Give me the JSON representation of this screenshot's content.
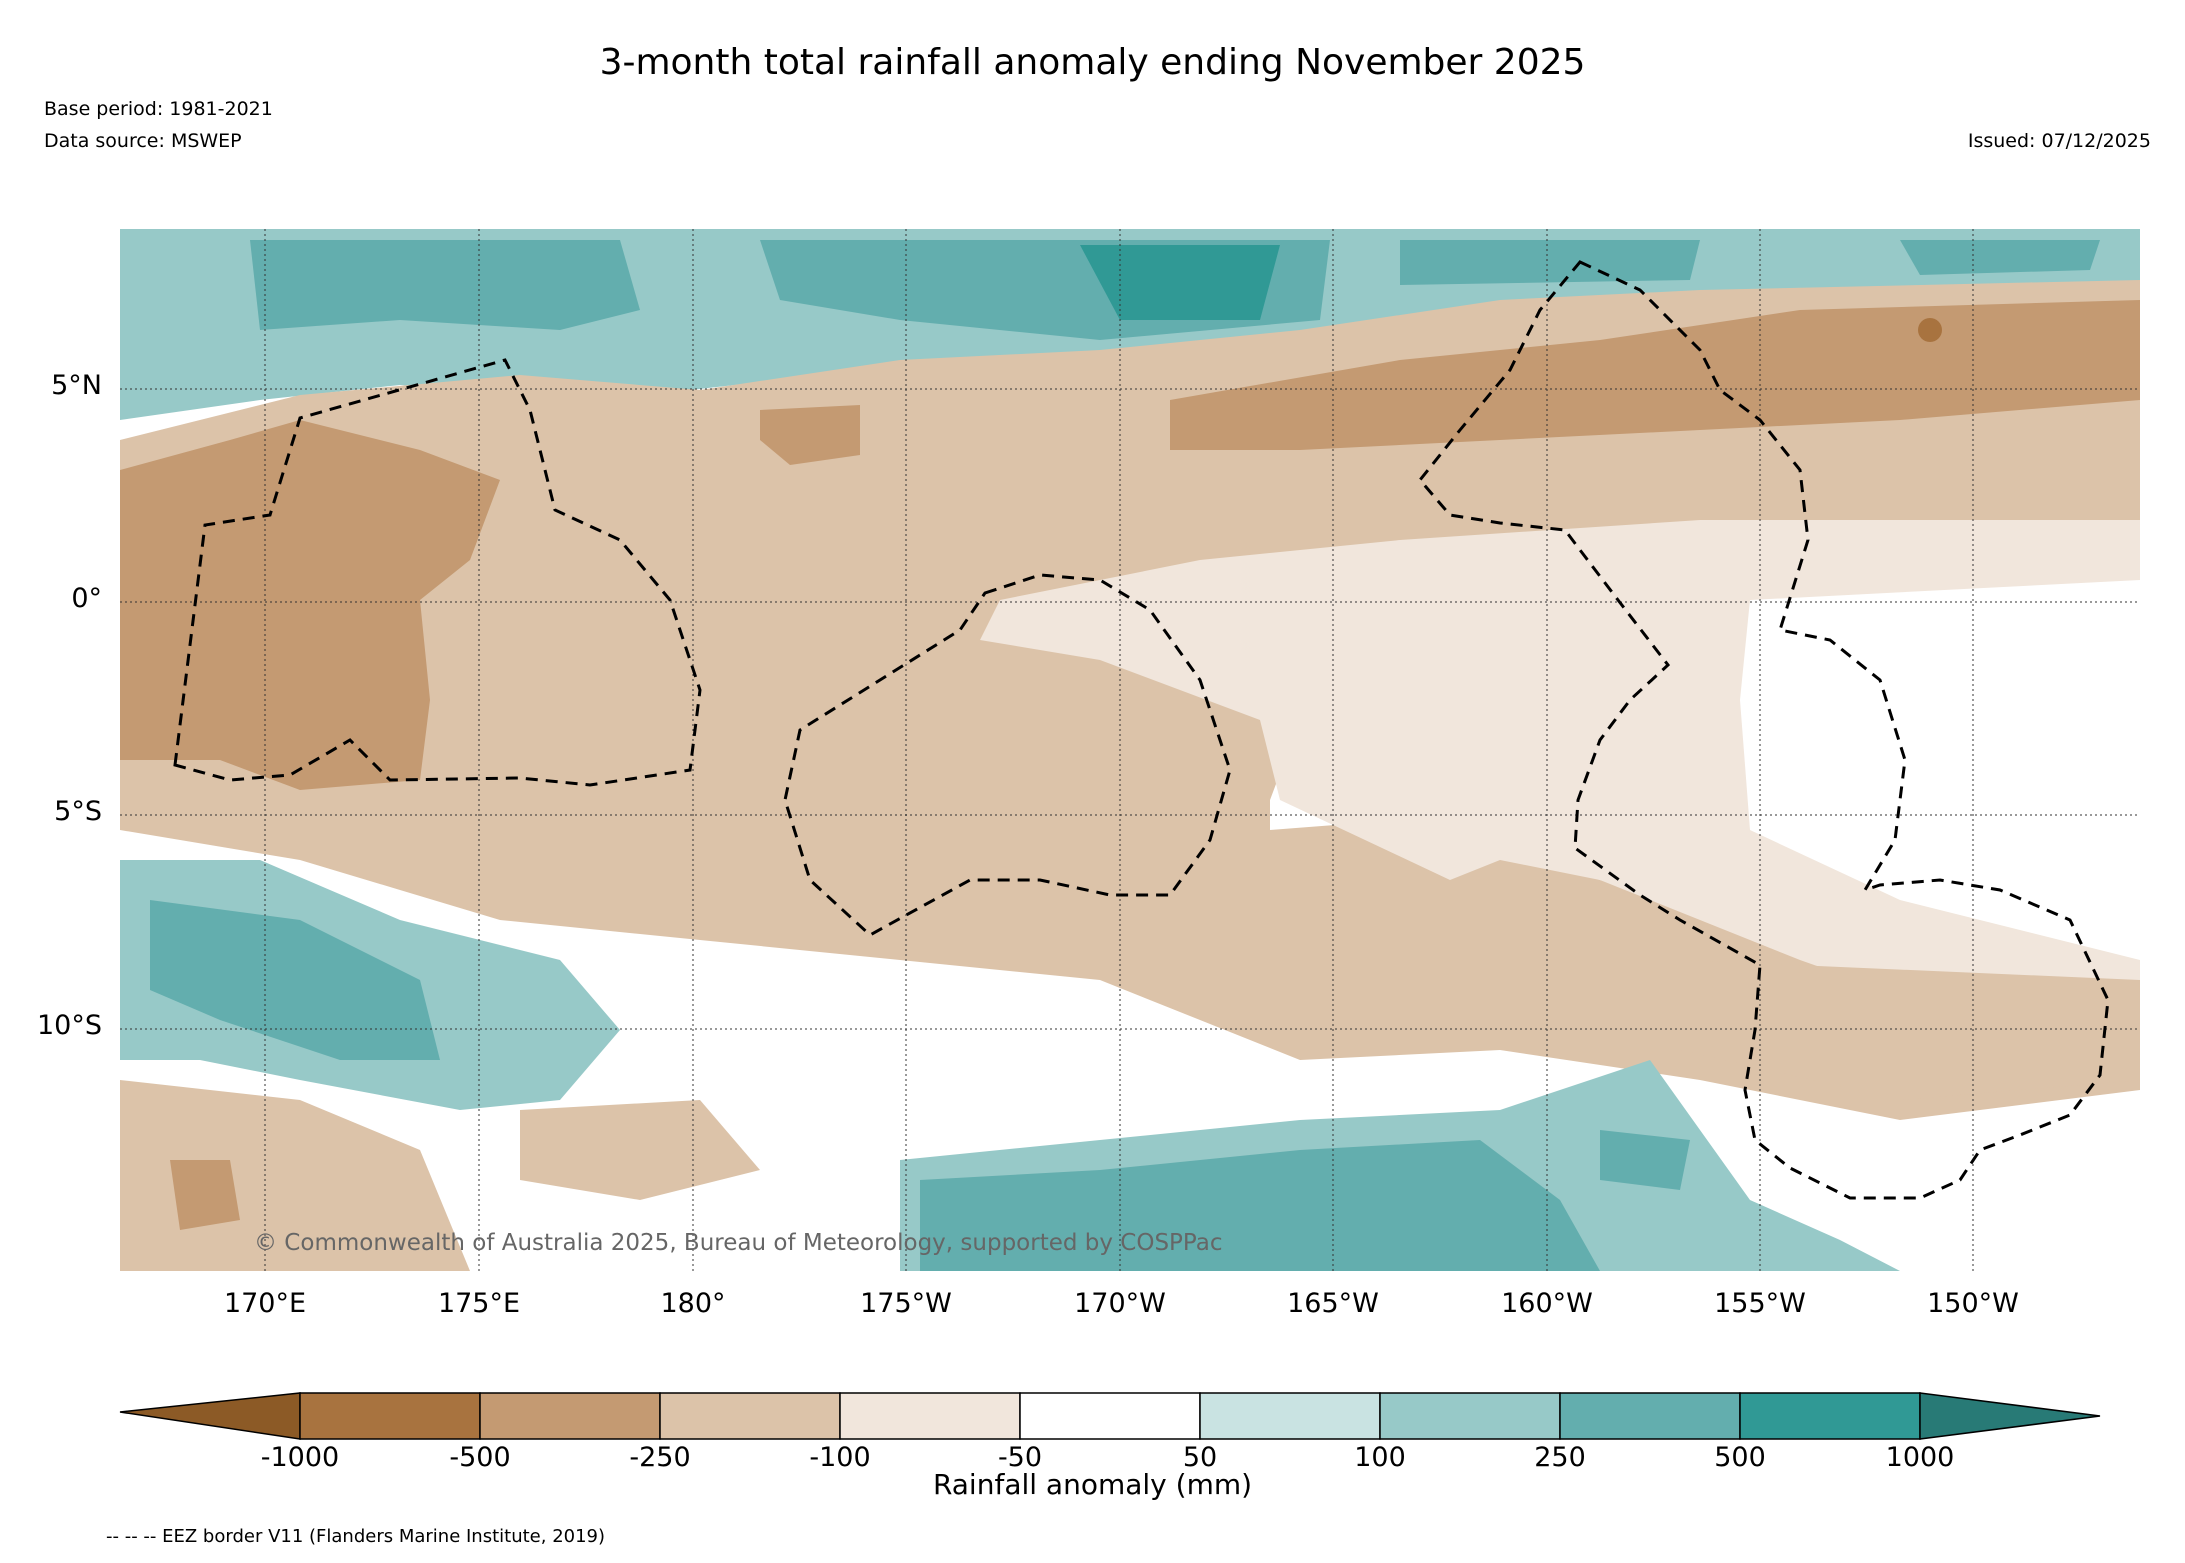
{
  "title": "3-month total rainfall anomaly ending November 2025",
  "base_period": "Base period: 1981-2021",
  "data_source": "Data source: MSWEP",
  "issued": "Issued: 07/12/2025",
  "copyright": "© Commonwealth of Australia 2025, Bureau of Meteorology, supported by COSPPac",
  "legend_note": "-- -- -- EEZ border V11 (Flanders Marine Institute, 2019)",
  "map": {
    "lat_labels": [
      "5°N",
      "0°",
      "5°S",
      "10°S"
    ],
    "lon_labels": [
      "170°E",
      "175°E",
      "180°",
      "175°W",
      "170°W",
      "165°W",
      "160°W",
      "155°W",
      "150°W"
    ]
  },
  "colorbar": {
    "title": "Rainfall anomaly (mm)",
    "ticks": [
      "-1000",
      "-500",
      "-250",
      "-100",
      "-50",
      "50",
      "100",
      "250",
      "500",
      "1000"
    ],
    "colors": {
      "lt_-1000": "#8c5a26",
      "-1000_-500": "#a8733f",
      "-500_-250": "#c49a72",
      "-250_-100": "#dcc3a9",
      "-100_-50": "#f1e6dc",
      "-50_50": "#ffffff",
      "50_100": "#c9e3e2",
      "100_250": "#97c9c8",
      "250_500": "#63aeae",
      "500_1000": "#309995",
      "gt_1000": "#287a76"
    }
  }
}
